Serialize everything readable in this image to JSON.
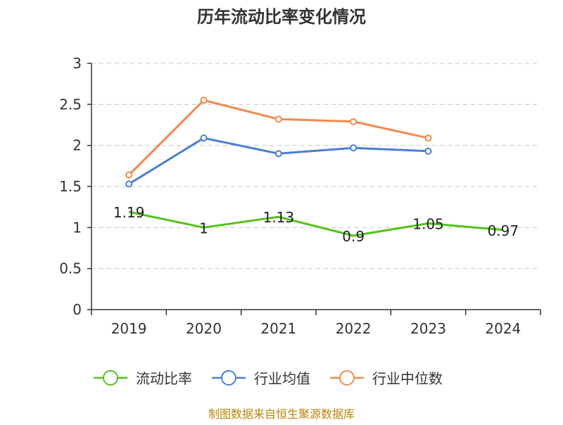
{
  "chart_data": {
    "type": "line",
    "title": "历年流动比率变化情况",
    "categories": [
      "2019",
      "2020",
      "2021",
      "2022",
      "2023",
      "2024"
    ],
    "ylim": [
      0,
      3
    ],
    "yticks": [
      "0",
      "0.5",
      "1",
      "1.5",
      "2",
      "2.5",
      "3"
    ],
    "grid": true,
    "legend_position": "bottom",
    "series": [
      {
        "name": "流动比率",
        "color": "#52c41a",
        "values": [
          1.19,
          1,
          1.13,
          0.9,
          1.05,
          0.97
        ],
        "labels": [
          "1.19",
          "1",
          "1.13",
          "0.9",
          "1.05",
          "0.97"
        ],
        "show_markers": false
      },
      {
        "name": "行业均值",
        "color": "#4a7fd6",
        "values": [
          1.53,
          2.09,
          1.9,
          1.97,
          1.93,
          null
        ],
        "show_markers": true
      },
      {
        "name": "行业中位数",
        "color": "#f5894e",
        "values": [
          1.64,
          2.55,
          2.32,
          2.29,
          2.09,
          null
        ],
        "show_markers": true
      }
    ]
  },
  "source": "制图数据来自恒生聚源数据库"
}
